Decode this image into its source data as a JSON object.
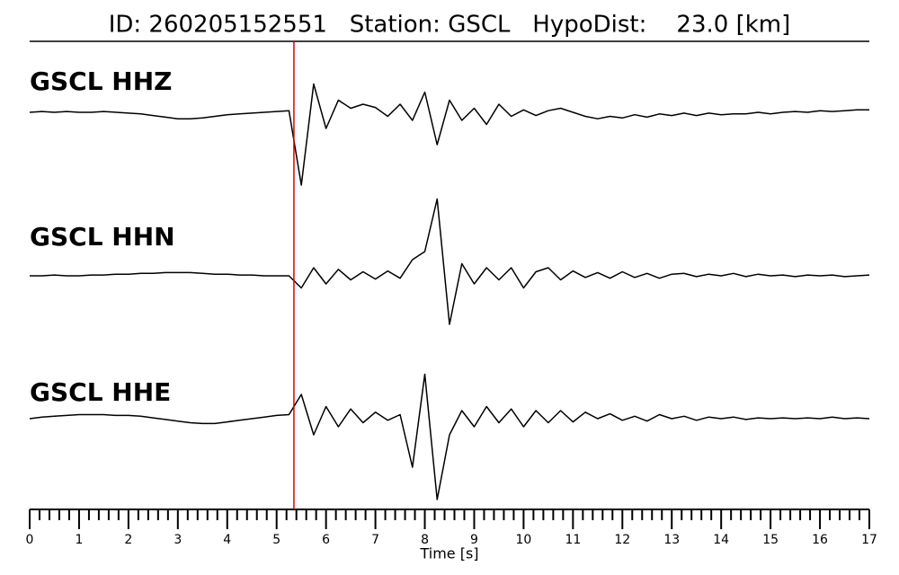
{
  "chart_data": {
    "type": "seismogram",
    "title": "ID: 260205152551   Station: GSCL   HypoDist:    23.0 [km]",
    "xlabel": "Time [s]",
    "xlim": [
      0,
      17
    ],
    "xticks": [
      0,
      1,
      2,
      3,
      4,
      5,
      6,
      7,
      8,
      9,
      10,
      11,
      12,
      13,
      14,
      15,
      16,
      17
    ],
    "ylim": [
      -1,
      1
    ],
    "pick_time": 5.35,
    "pick_color": "#e00000",
    "label_color": "#4a9a0a",
    "trace_color": "#000000",
    "x": [
      0,
      0.25,
      0.5,
      0.75,
      1,
      1.25,
      1.5,
      1.75,
      2,
      2.25,
      2.5,
      2.75,
      3,
      3.25,
      3.5,
      3.75,
      4,
      4.25,
      4.5,
      4.75,
      5,
      5.25,
      5.5,
      5.75,
      6,
      6.25,
      6.5,
      6.75,
      7,
      7.25,
      7.5,
      7.75,
      8,
      8.25,
      8.5,
      8.75,
      9,
      9.25,
      9.5,
      9.75,
      10,
      10.25,
      10.5,
      10.75,
      11,
      11.25,
      11.5,
      11.75,
      12,
      12.25,
      12.5,
      12.75,
      13,
      13.25,
      13.5,
      13.75,
      14,
      14.25,
      14.5,
      14.75,
      15,
      15.25,
      15.5,
      15.75,
      16,
      16.25,
      16.5,
      16.75,
      17
    ],
    "series": [
      {
        "name": "GSCL HHZ",
        "values": [
          0,
          0.01,
          0,
          0.01,
          0,
          0,
          0.01,
          0,
          -0.01,
          -0.02,
          -0.04,
          -0.06,
          -0.08,
          -0.08,
          -0.07,
          -0.05,
          -0.03,
          -0.02,
          -0.01,
          0,
          0.01,
          0.02,
          -0.9,
          0.35,
          -0.2,
          0.15,
          0.05,
          0.1,
          0.06,
          -0.05,
          0.1,
          -0.1,
          0.25,
          -0.4,
          0.15,
          -0.1,
          0.05,
          -0.15,
          0.1,
          -0.05,
          0.03,
          -0.04,
          0.02,
          0.05,
          0,
          -0.05,
          -0.08,
          -0.05,
          -0.07,
          -0.03,
          -0.06,
          -0.02,
          -0.04,
          -0.01,
          -0.04,
          -0.01,
          -0.03,
          -0.02,
          -0.02,
          0,
          -0.02,
          0,
          0.01,
          0,
          0.02,
          0.01,
          0.02,
          0.03,
          0.03
        ]
      },
      {
        "name": "GSCL HHN",
        "values": [
          0,
          0,
          0.01,
          0,
          0,
          0.01,
          0.01,
          0.02,
          0.02,
          0.03,
          0.03,
          0.04,
          0.04,
          0.04,
          0.03,
          0.02,
          0.02,
          0.01,
          0.01,
          0,
          0,
          0,
          -0.15,
          0.1,
          -0.1,
          0.08,
          -0.05,
          0.05,
          -0.04,
          0.06,
          -0.03,
          0.2,
          0.3,
          0.95,
          -0.6,
          0.15,
          -0.1,
          0.1,
          -0.05,
          0.1,
          -0.15,
          0.05,
          0.1,
          -0.05,
          0.06,
          -0.02,
          0.04,
          -0.03,
          0.05,
          -0.02,
          0.03,
          -0.03,
          0.02,
          0.03,
          -0.01,
          0.02,
          0,
          0.03,
          -0.01,
          0.02,
          0,
          0.01,
          -0.01,
          0.01,
          0,
          0.01,
          -0.01,
          0,
          0.01
        ]
      },
      {
        "name": "GSCL HHE",
        "values": [
          0,
          0.02,
          0.03,
          0.04,
          0.05,
          0.05,
          0.05,
          0.04,
          0.04,
          0.03,
          0.01,
          -0.01,
          -0.03,
          -0.05,
          -0.06,
          -0.06,
          -0.04,
          -0.02,
          0,
          0.02,
          0.04,
          0.05,
          0.3,
          -0.2,
          0.15,
          -0.1,
          0.12,
          -0.05,
          0.08,
          -0.02,
          0.05,
          -0.6,
          0.55,
          -1.0,
          -0.2,
          0.1,
          -0.1,
          0.15,
          -0.05,
          0.12,
          -0.1,
          0.1,
          -0.05,
          0.1,
          -0.04,
          0.08,
          0,
          0.06,
          -0.02,
          0.03,
          -0.03,
          0.05,
          0,
          0.03,
          -0.02,
          0.02,
          0,
          0.02,
          -0.01,
          0.01,
          0,
          0.01,
          0,
          0.01,
          0,
          0.02,
          0,
          0.01,
          0
        ]
      }
    ]
  }
}
